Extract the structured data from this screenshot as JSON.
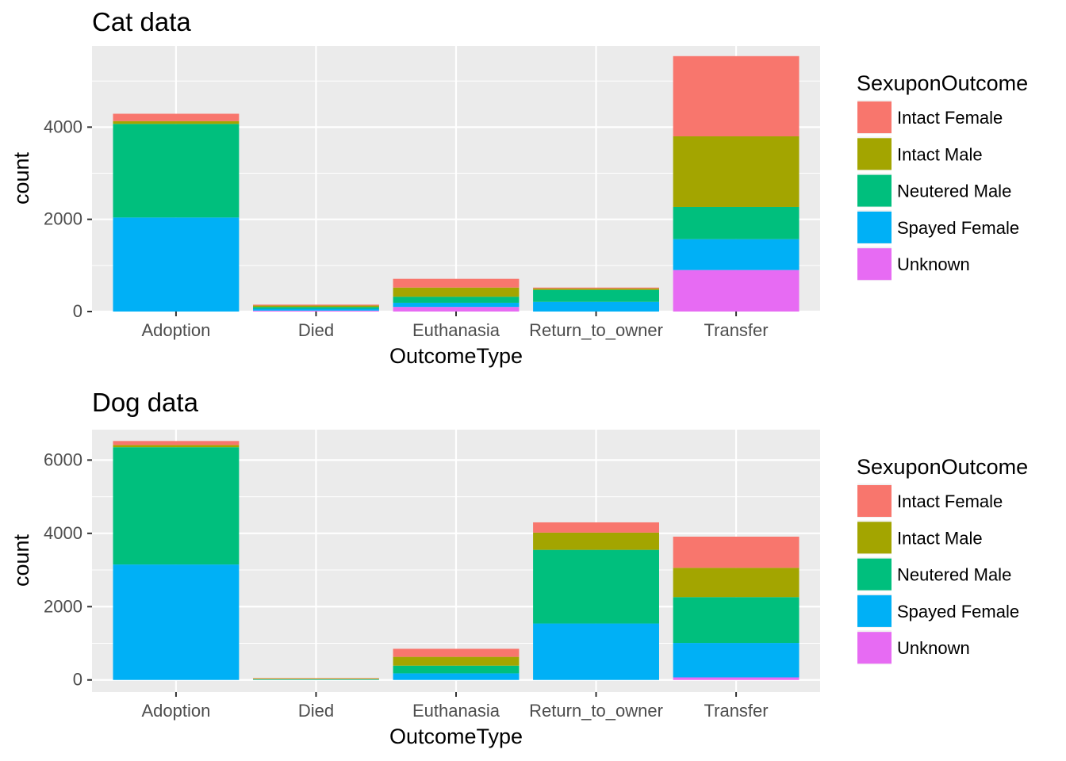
{
  "chart_data": [
    {
      "type": "bar",
      "stacked": true,
      "title": "Cat data",
      "xlabel": "OutcomeType",
      "ylabel": "count",
      "ylim": [
        0,
        5760
      ],
      "yticks": [
        0,
        2000,
        4000
      ],
      "grid": true,
      "legend_placement": "right",
      "legend_title": "SexuponOutcome",
      "categories": [
        "Adoption",
        "Died",
        "Euthanasia",
        "Return_to_owner",
        "Transfer"
      ],
      "series": [
        {
          "name": "Intact Female",
          "color": "#F8766D",
          "values": [
            160,
            20,
            190,
            20,
            1740
          ]
        },
        {
          "name": "Intact Male",
          "color": "#A3A500",
          "values": [
            60,
            30,
            200,
            30,
            1530
          ]
        },
        {
          "name": "Neutered Male",
          "color": "#00BF7D",
          "values": [
            2030,
            40,
            130,
            260,
            700
          ]
        },
        {
          "name": "Spayed Female",
          "color": "#00B0F6",
          "values": [
            2040,
            40,
            90,
            210,
            670
          ]
        },
        {
          "name": "Unknown",
          "color": "#E76BF3",
          "values": [
            0,
            20,
            100,
            0,
            900
          ]
        }
      ]
    },
    {
      "type": "bar",
      "stacked": true,
      "title": "Dog data",
      "xlabel": "OutcomeType",
      "ylabel": "count",
      "ylim": [
        -330,
        6830
      ],
      "yticks": [
        0,
        2000,
        4000,
        6000
      ],
      "grid": true,
      "legend_placement": "right",
      "legend_title": "SexuponOutcome",
      "categories": [
        "Adoption",
        "Died",
        "Euthanasia",
        "Return_to_owner",
        "Transfer"
      ],
      "series": [
        {
          "name": "Intact Female",
          "color": "#F8766D",
          "values": [
            110,
            10,
            220,
            280,
            850
          ]
        },
        {
          "name": "Intact Male",
          "color": "#A3A500",
          "values": [
            60,
            20,
            240,
            470,
            800
          ]
        },
        {
          "name": "Neutered Male",
          "color": "#00BF7D",
          "values": [
            3200,
            10,
            210,
            2010,
            1250
          ]
        },
        {
          "name": "Spayed Female",
          "color": "#00B0F6",
          "values": [
            3150,
            10,
            180,
            1540,
            940
          ]
        },
        {
          "name": "Unknown",
          "color": "#E76BF3",
          "values": [
            0,
            0,
            0,
            0,
            70
          ]
        }
      ]
    }
  ]
}
